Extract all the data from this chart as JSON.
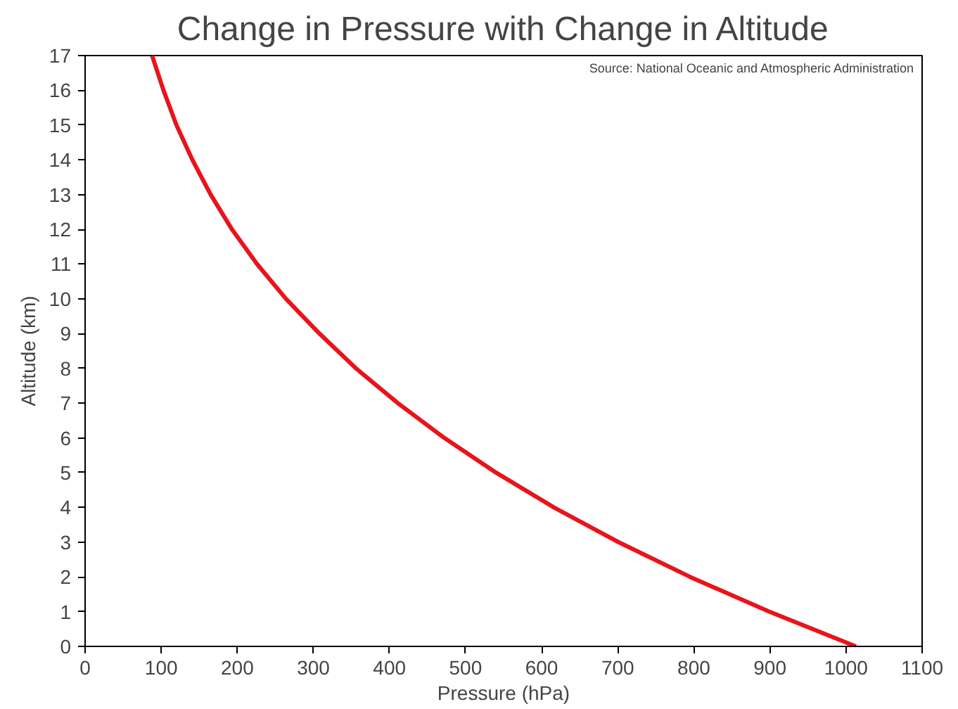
{
  "chart_data": {
    "type": "line",
    "title": "Change in Pressure with Change in Altitude",
    "xlabel": "Pressure (hPa)",
    "ylabel": "Altitude (km)",
    "annotations": [
      "Source: National Oceanic and Atmospheric Administration"
    ],
    "x": [
      1013,
      899,
      795,
      701,
      616,
      540,
      472,
      411,
      356,
      308,
      264,
      226,
      193,
      165,
      141,
      120,
      103,
      88
    ],
    "series": [
      {
        "color": "#e8141b",
        "values": [
          0,
          1,
          2,
          3,
          4,
          5,
          6,
          7,
          8,
          9,
          10,
          11,
          12,
          13,
          14,
          15,
          16,
          17
        ]
      }
    ],
    "xlim": [
      0,
      1100
    ],
    "ylim": [
      0,
      17
    ],
    "xticks": [
      0,
      100,
      200,
      300,
      400,
      500,
      600,
      700,
      800,
      900,
      1000,
      1100
    ],
    "yticks": [
      0,
      1,
      2,
      3,
      4,
      5,
      6,
      7,
      8,
      9,
      10,
      11,
      12,
      13,
      14,
      15,
      16,
      17
    ],
    "grid": false,
    "marker": "none",
    "line_style": "solid"
  }
}
